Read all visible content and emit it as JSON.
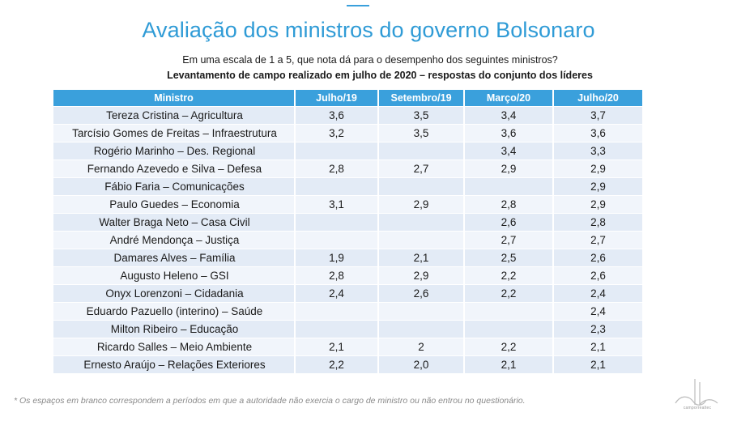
{
  "header": {
    "title": "Avaliação dos ministros do governo Bolsonaro",
    "subtitle": "Em uma escala de 1 a 5, que nota dá para o desempenho dos seguintes ministros?",
    "subtitle2": "Levantamento de campo realizado em julho de 2020  – respostas do conjunto dos líderes"
  },
  "table": {
    "columns": [
      "Ministro",
      "Julho/19",
      "Setembro/19",
      "Março/20",
      "Julho/20"
    ],
    "rows": [
      [
        "Tereza Cristina – Agricultura",
        "3,6",
        "3,5",
        "3,4",
        "3,7"
      ],
      [
        "Tarcísio Gomes de Freitas – Infraestrutura",
        "3,2",
        "3,5",
        "3,6",
        "3,6"
      ],
      [
        "Rogério Marinho – Des. Regional",
        "",
        "",
        "3,4",
        "3,3"
      ],
      [
        "Fernando Azevedo e Silva – Defesa",
        "2,8",
        "2,7",
        "2,9",
        "2,9"
      ],
      [
        "Fábio Faria – Comunicações",
        "",
        "",
        "",
        "2,9"
      ],
      [
        "Paulo Guedes – Economia",
        "3,1",
        "2,9",
        "2,8",
        "2,9"
      ],
      [
        "Walter Braga Neto – Casa Civil",
        "",
        "",
        "2,6",
        "2,8"
      ],
      [
        "André Mendonça – Justiça",
        "",
        "",
        "2,7",
        "2,7"
      ],
      [
        "Damares Alves – Família",
        "1,9",
        "2,1",
        "2,5",
        "2,6"
      ],
      [
        "Augusto Heleno – GSI",
        "2,8",
        "2,9",
        "2,2",
        "2,6"
      ],
      [
        "Onyx Lorenzoni – Cidadania",
        "2,4",
        "2,6",
        "2,2",
        "2,4"
      ],
      [
        "Eduardo Pazuello (interino) – Saúde",
        "",
        "",
        "",
        "2,4"
      ],
      [
        "Milton Ribeiro – Educação",
        "",
        "",
        "",
        "2,3"
      ],
      [
        "Ricardo Salles – Meio Ambiente",
        "2,1",
        "2",
        "2,2",
        "2,1"
      ],
      [
        "Ernesto Araújo – Relações Exteriores",
        "2,2",
        "2,0",
        "2,1",
        "2,1"
      ]
    ]
  },
  "footnote": "* Os espaços em branco correspondem a períodos em que a autoridade não exercia o cargo de ministro ou não entrou no questionário.",
  "logo": {
    "icon": "company-logo-icon",
    "text": "camporrealtec"
  },
  "colors": {
    "accent": "#2f9bd6",
    "header_bg": "#3aa0dc",
    "row_odd": "#e3ebf6",
    "row_even": "#f1f5fb"
  }
}
